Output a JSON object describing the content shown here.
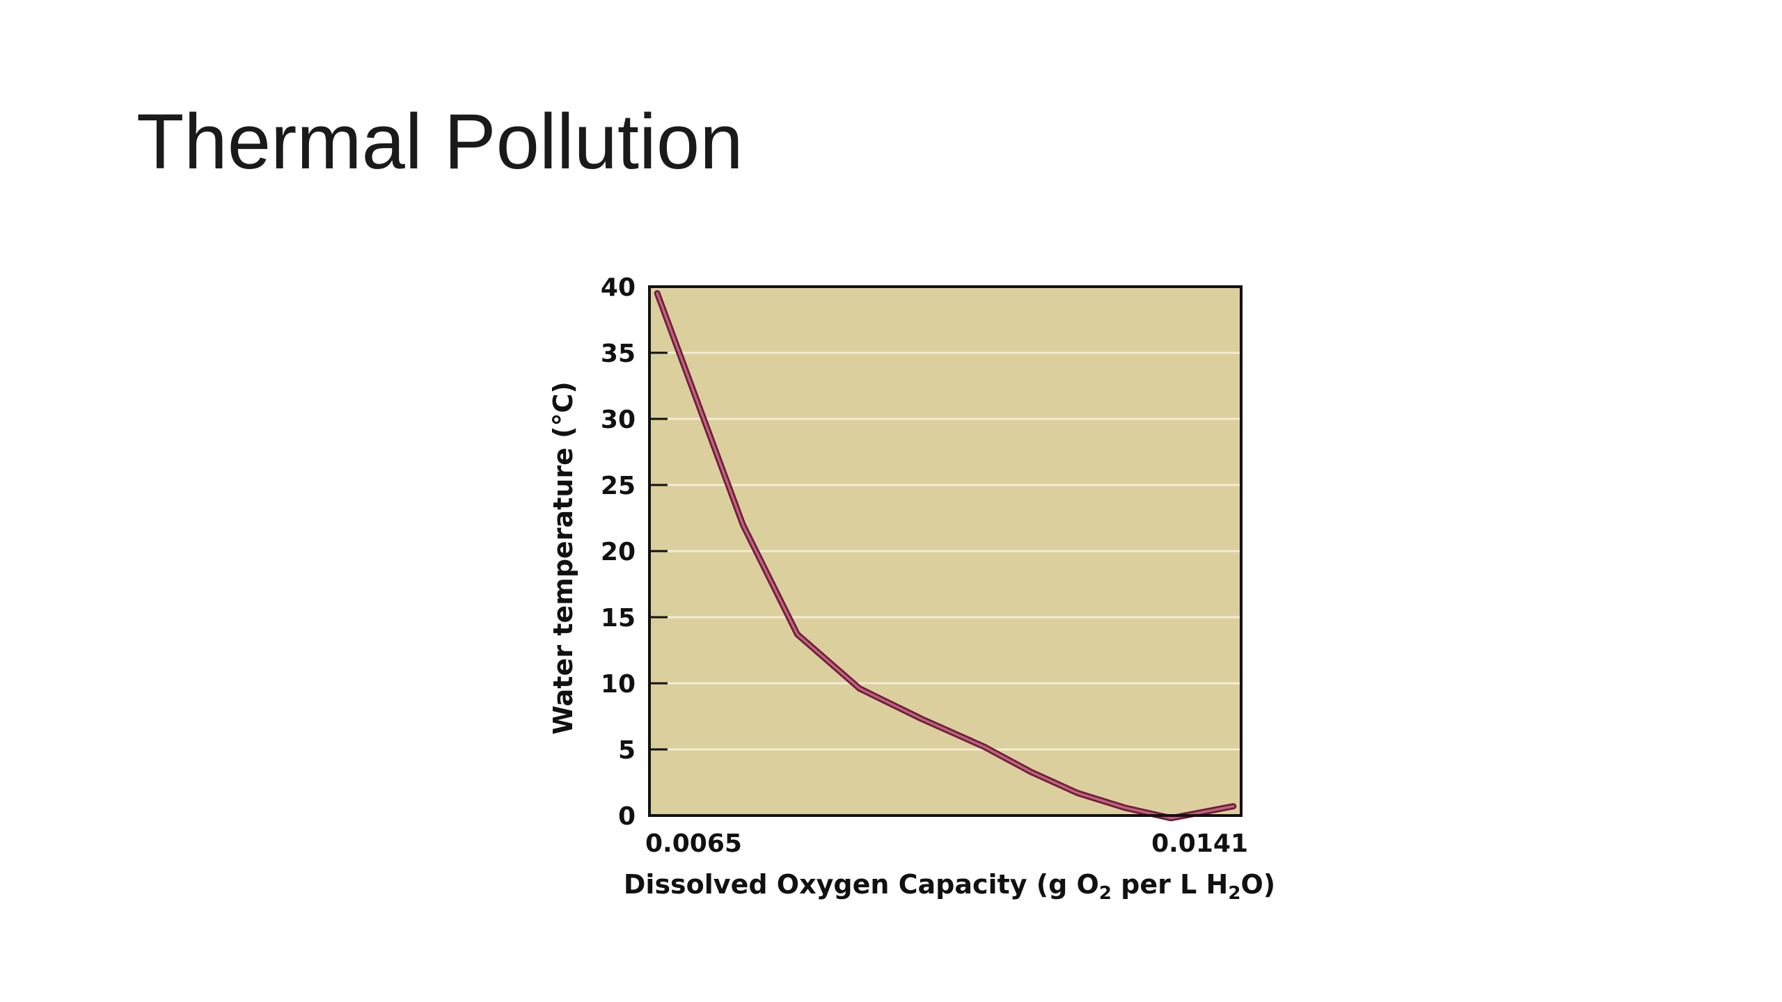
{
  "slide": {
    "title": "Thermal Pollution"
  },
  "colors": {
    "plot_background": "#dbcf9e",
    "gridline": "#f2ecd2",
    "curve_outer": "#6b1f3a",
    "curve_inner": "#c2607f",
    "frame": "#111111"
  },
  "chart_data": {
    "type": "line",
    "xlabel_parts": [
      {
        "text": "Dissolved Oxygen Capacity (g O",
        "sub": false
      },
      {
        "text": "2",
        "sub": true
      },
      {
        "text": " per L H",
        "sub": false
      },
      {
        "text": "2",
        "sub": true
      },
      {
        "text": "O)",
        "sub": false
      }
    ],
    "ylabel": "Water temperature (°C)",
    "x_tick_labels": [
      "0.0065",
      "0.0141"
    ],
    "xlim": [
      0.0065,
      0.0141
    ],
    "ylim": [
      0,
      40
    ],
    "y_ticks": [
      0,
      5,
      10,
      15,
      20,
      25,
      30,
      35,
      40
    ],
    "grid": true,
    "series": [
      {
        "x": [
          0.0066,
          0.0077,
          0.0084,
          0.0092,
          0.01,
          0.0108,
          0.0114,
          0.012,
          0.0126,
          0.0132,
          0.014
        ],
        "y": [
          39.5,
          22.0,
          13.7,
          9.6,
          7.3,
          5.2,
          3.3,
          1.7,
          0.6,
          -0.2,
          0.7
        ]
      }
    ]
  }
}
